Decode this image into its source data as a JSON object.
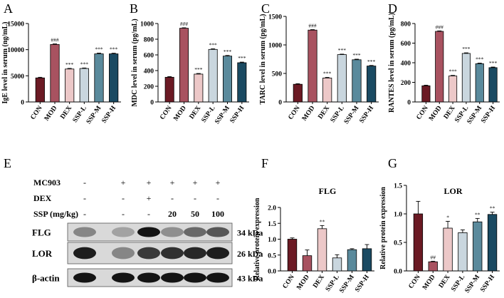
{
  "colors": [
    "#6b1a24",
    "#a85260",
    "#ecc8c8",
    "#c9d6de",
    "#5a8a9c",
    "#1a4a62"
  ],
  "bar_charts": [
    {
      "letter": "A",
      "ylabel": "IgE level in serum (ng/mL)",
      "categories": [
        "CON",
        "MOD",
        "DEX",
        "SSP-L",
        "SSP-M",
        "SSP-H"
      ],
      "values": [
        4600,
        11000,
        6300,
        6400,
        9200,
        9200
      ],
      "errors": [
        120,
        100,
        120,
        100,
        150,
        120
      ],
      "ylim": [
        0,
        15000
      ],
      "yticks": [
        "0",
        "5000",
        "10000",
        "15000"
      ],
      "ytick_values": [
        0,
        5000,
        10000,
        15000
      ],
      "sig": [
        "",
        "###",
        "***",
        "***",
        "***",
        "***"
      ]
    },
    {
      "letter": "B",
      "ylabel": "MDC level in serum (pg/mL)",
      "categories": [
        "CON",
        "MOD",
        "DEX",
        "SSP-L",
        "SSP-M",
        "SSP-H"
      ],
      "values": [
        315,
        940,
        355,
        670,
        585,
        500
      ],
      "errors": [
        8,
        6,
        8,
        8,
        8,
        8
      ],
      "ylim": [
        0,
        1000
      ],
      "yticks": [
        "0",
        "200",
        "400",
        "600",
        "800",
        "1000"
      ],
      "ytick_values": [
        0,
        200,
        400,
        600,
        800,
        1000
      ],
      "sig": [
        "",
        "###",
        "***",
        "***",
        "***",
        "***"
      ]
    },
    {
      "letter": "C",
      "ylabel": "TARC level in serum (pg/mL)",
      "categories": [
        "CON",
        "MOD",
        "DEX",
        "SSP-L",
        "SSP-M",
        "SSP-H"
      ],
      "values": [
        310,
        1260,
        420,
        830,
        740,
        630
      ],
      "errors": [
        10,
        8,
        10,
        8,
        10,
        10
      ],
      "ylim": [
        0,
        1500
      ],
      "yticks": [
        "0",
        "500",
        "1000",
        "1500"
      ],
      "ytick_values": [
        0,
        500,
        1000,
        1500
      ],
      "sig": [
        "",
        "###",
        "***",
        "***",
        "***",
        "***"
      ]
    },
    {
      "letter": "D",
      "ylabel": "RANTES level in serum (pg/mL)",
      "categories": [
        "CON",
        "MOD",
        "DEX",
        "SSP-L",
        "SSP-M",
        "SSP-H"
      ],
      "values": [
        165,
        720,
        265,
        495,
        390,
        350
      ],
      "errors": [
        6,
        5,
        6,
        6,
        6,
        6
      ],
      "ylim": [
        0,
        800
      ],
      "yticks": [
        "0",
        "200",
        "400",
        "600",
        "800"
      ],
      "ytick_values": [
        0,
        200,
        400,
        600,
        800
      ],
      "sig": [
        "",
        "###",
        "***",
        "***",
        "***",
        "***"
      ]
    },
    {
      "letter": "F",
      "title": "FLG",
      "ylabel": "Relative protein expression",
      "categories": [
        "CON",
        "MOD",
        "DEX",
        "SSP-L",
        "SSP-M",
        "SSP-H"
      ],
      "values": [
        1.0,
        0.48,
        1.33,
        0.41,
        0.67,
        0.7
      ],
      "errors": [
        0.04,
        0.18,
        0.1,
        0.1,
        0.03,
        0.13
      ],
      "ylim": [
        0,
        2.0
      ],
      "yticks": [
        "0.0",
        "0.5",
        "1.0",
        "1.5",
        "2.0"
      ],
      "ytick_values": [
        0,
        0.5,
        1.0,
        1.5,
        2.0
      ],
      "sig": [
        "",
        "",
        "**",
        "",
        "",
        ""
      ]
    },
    {
      "letter": "G",
      "title": "LOR",
      "ylabel": "Relative protein expression",
      "categories": [
        "CON",
        "MOD",
        "DEX",
        "SSP-L",
        "SSP-M",
        "SSP-H"
      ],
      "values": [
        1.0,
        0.16,
        0.75,
        0.67,
        0.86,
        0.99
      ],
      "errors": [
        0.22,
        0.01,
        0.12,
        0.05,
        0.06,
        0.04
      ],
      "ylim": [
        0,
        1.5
      ],
      "yticks": [
        "0.0",
        "0.5",
        "1.0",
        "1.5"
      ],
      "ytick_values": [
        0,
        0.5,
        1.0,
        1.5
      ],
      "sig": [
        "",
        "##",
        "*",
        "",
        "**",
        "**"
      ]
    }
  ],
  "blot": {
    "letter": "E",
    "treatment_rows": [
      {
        "label": "MC903",
        "marks": [
          "-",
          "+",
          "+",
          "+",
          "+",
          "+"
        ]
      },
      {
        "label": "DEX",
        "marks": [
          "-",
          "-",
          "+",
          "-",
          "-",
          "-"
        ]
      },
      {
        "label": "SSP (mg/kg)",
        "marks": [
          "-",
          "-",
          "-",
          "20",
          "50",
          "100"
        ]
      }
    ],
    "bands": [
      {
        "label": "FLG",
        "size": "34 kDa",
        "intensity": [
          0.35,
          0.2,
          0.95,
          0.3,
          0.5,
          0.6
        ]
      },
      {
        "label": "LOR",
        "size": "26 kDa",
        "intensity": [
          0.9,
          0.35,
          0.75,
          0.8,
          0.85,
          0.9
        ]
      },
      {
        "label": "β-actin",
        "size": "43 kDa",
        "intensity": [
          0.95,
          0.95,
          0.95,
          0.95,
          0.95,
          0.95
        ]
      }
    ]
  }
}
